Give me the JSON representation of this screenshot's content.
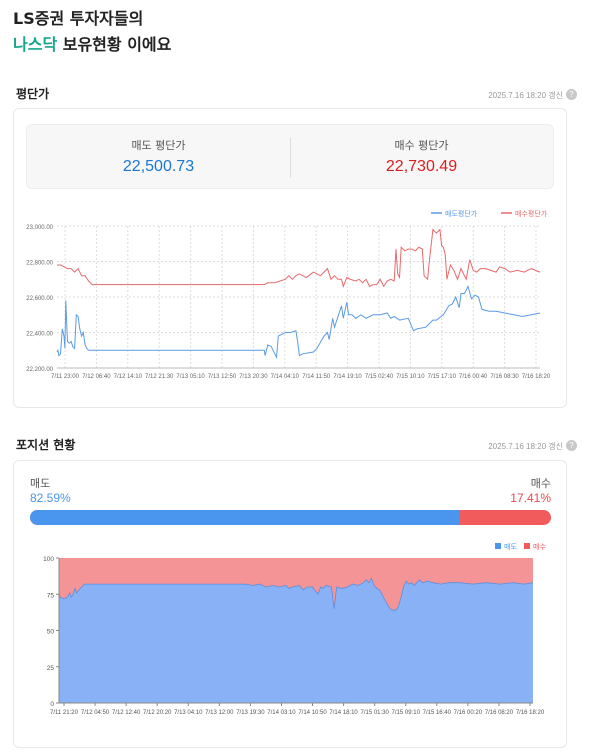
{
  "page": {
    "title_line1": "LS증권 투자자들의",
    "title_hl": "나스닥",
    "title_rest": " 보유현황 이에요"
  },
  "avg_section": {
    "heading": "평단가",
    "timestamp": "2025.7.16 18:20 갱신",
    "help": "?",
    "sell_label": "매도 평단가",
    "sell_value": "22,500.73",
    "buy_label": "매수 평단가",
    "buy_value": "22,730.49"
  },
  "pos_section": {
    "heading": "포지션 현황",
    "timestamp": "2025.7.16 18:20 갱신",
    "help": "?",
    "sell_label": "매도",
    "sell_pct": "82.59%",
    "buy_label": "매수",
    "buy_pct": "17.41%",
    "sell_ratio": 0.8259
  },
  "colors": {
    "sell": "#4a96ee",
    "buy": "#f25b5b",
    "accent": "#19a48c"
  },
  "chart_data": [
    {
      "type": "line",
      "legend_position": "top-right",
      "grid": true,
      "ylim": [
        22200,
        23000
      ],
      "y_ticks": [
        "22,200.00",
        "22,400.00",
        "22,600.00",
        "22,800.00",
        "23,000.00"
      ],
      "x_ticks": [
        "7/11 23:00",
        "7/12 06:40",
        "7/12 14:10",
        "7/12 21:30",
        "7/13 05:10",
        "7/13 12:50",
        "7/13 20:30",
        "7/14 04:10",
        "7/14 11:50",
        "7/14 19:10",
        "7/15 02:40",
        "7/15 10:10",
        "7/15 17:10",
        "7/16 00:40",
        "7/16 08:30",
        "7/16 18:20"
      ],
      "series": [
        {
          "name": "매도평단가",
          "color": "#5b9be6",
          "points": [
            [
              0,
              22290
            ],
            [
              0.5,
              22300
            ],
            [
              1,
              22270
            ],
            [
              2,
              22280
            ],
            [
              3,
              22420
            ],
            [
              4,
              22380
            ],
            [
              4.5,
              22310
            ],
            [
              5,
              22580
            ],
            [
              5.5,
              22450
            ],
            [
              6,
              22350
            ],
            [
              7,
              22340
            ],
            [
              8,
              22350
            ],
            [
              9,
              22320
            ],
            [
              10,
              22310
            ],
            [
              11,
              22500
            ],
            [
              12,
              22490
            ],
            [
              13,
              22420
            ],
            [
              14,
              22380
            ],
            [
              15,
              22400
            ],
            [
              16,
              22330
            ],
            [
              17,
              22310
            ],
            [
              18,
              22300
            ],
            [
              50,
              22300
            ],
            [
              98,
              22300
            ],
            [
              110,
              22300
            ],
            [
              118,
              22300
            ],
            [
              118.5,
              22270
            ],
            [
              120,
              22330
            ],
            [
              122,
              22320
            ],
            [
              125,
              22260
            ],
            [
              126,
              22380
            ],
            [
              130,
              22400
            ],
            [
              133,
              22400
            ],
            [
              136,
              22410
            ],
            [
              137,
              22350
            ],
            [
              138,
              22270
            ],
            [
              140,
              22280
            ],
            [
              146,
              22290
            ],
            [
              148,
              22310
            ],
            [
              152,
              22380
            ],
            [
              154,
              22400
            ],
            [
              155,
              22360
            ],
            [
              157,
              22480
            ],
            [
              158,
              22430
            ],
            [
              160,
              22490
            ],
            [
              162,
              22550
            ],
            [
              163,
              22480
            ],
            [
              165,
              22570
            ],
            [
              166,
              22500
            ],
            [
              168,
              22500
            ],
            [
              170,
              22480
            ],
            [
              173,
              22500
            ],
            [
              176,
              22480
            ],
            [
              180,
              22500
            ],
            [
              184,
              22500
            ],
            [
              188,
              22510
            ],
            [
              190,
              22480
            ],
            [
              192,
              22490
            ],
            [
              195,
              22470
            ],
            [
              200,
              22480
            ],
            [
              203,
              22410
            ],
            [
              205,
              22420
            ],
            [
              210,
              22430
            ],
            [
              212,
              22450
            ],
            [
              214,
              22470
            ],
            [
              216,
              22470
            ],
            [
              220,
              22500
            ],
            [
              223,
              22550
            ],
            [
              225,
              22560
            ],
            [
              227,
              22600
            ],
            [
              229,
              22540
            ],
            [
              230,
              22620
            ],
            [
              232,
              22620
            ],
            [
              234,
              22660
            ],
            [
              236,
              22590
            ],
            [
              238,
              22610
            ],
            [
              240,
              22600
            ],
            [
              242,
              22530
            ],
            [
              246,
              22520
            ],
            [
              250,
              22520
            ],
            [
              255,
              22510
            ],
            [
              260,
              22500
            ],
            [
              265,
              22490
            ],
            [
              270,
              22500
            ],
            [
              275,
              22510
            ]
          ]
        },
        {
          "name": "매수평단가",
          "color": "#e8696b",
          "points": [
            [
              0,
              22780
            ],
            [
              2,
              22780
            ],
            [
              4,
              22770
            ],
            [
              6,
              22760
            ],
            [
              8,
              22760
            ],
            [
              10,
              22740
            ],
            [
              12,
              22760
            ],
            [
              14,
              22720
            ],
            [
              16,
              22720
            ],
            [
              18,
              22690
            ],
            [
              19,
              22680
            ],
            [
              20,
              22670
            ],
            [
              50,
              22670
            ],
            [
              98,
              22670
            ],
            [
              110,
              22670
            ],
            [
              118,
              22670
            ],
            [
              120,
              22680
            ],
            [
              124,
              22680
            ],
            [
              127,
              22690
            ],
            [
              130,
              22700
            ],
            [
              132,
              22720
            ],
            [
              134,
              22700
            ],
            [
              136,
              22720
            ],
            [
              138,
              22730
            ],
            [
              140,
              22720
            ],
            [
              142,
              22710
            ],
            [
              146,
              22740
            ],
            [
              150,
              22720
            ],
            [
              152,
              22740
            ],
            [
              154,
              22760
            ],
            [
              156,
              22700
            ],
            [
              158,
              22720
            ],
            [
              160,
              22700
            ],
            [
              162,
              22700
            ],
            [
              163,
              22660
            ],
            [
              165,
              22710
            ],
            [
              167,
              22700
            ],
            [
              170,
              22690
            ],
            [
              172,
              22700
            ],
            [
              174,
              22680
            ],
            [
              176,
              22700
            ],
            [
              178,
              22660
            ],
            [
              180,
              22670
            ],
            [
              182,
              22670
            ],
            [
              184,
              22700
            ],
            [
              186,
              22660
            ],
            [
              188,
              22690
            ],
            [
              190,
              22700
            ],
            [
              192,
              22690
            ],
            [
              193,
              22870
            ],
            [
              194,
              22730
            ],
            [
              195,
              22710
            ],
            [
              196,
              22880
            ],
            [
              198,
              22860
            ],
            [
              200,
              22870
            ],
            [
              202,
              22870
            ],
            [
              204,
              22860
            ],
            [
              206,
              22880
            ],
            [
              208,
              22870
            ],
            [
              209,
              22720
            ],
            [
              211,
              22700
            ],
            [
              212,
              22800
            ],
            [
              214,
              22980
            ],
            [
              216,
              22960
            ],
            [
              218,
              22980
            ],
            [
              219,
              22890
            ],
            [
              220,
              22880
            ],
            [
              221,
              22840
            ],
            [
              222,
              22700
            ],
            [
              224,
              22780
            ],
            [
              226,
              22750
            ],
            [
              228,
              22700
            ],
            [
              230,
              22760
            ],
            [
              233,
              22700
            ],
            [
              235,
              22810
            ],
            [
              237,
              22750
            ],
            [
              239,
              22740
            ],
            [
              241,
              22760
            ],
            [
              244,
              22760
            ],
            [
              247,
              22750
            ],
            [
              250,
              22740
            ],
            [
              252,
              22770
            ],
            [
              255,
              22760
            ],
            [
              258,
              22740
            ],
            [
              262,
              22750
            ],
            [
              266,
              22740
            ],
            [
              270,
              22760
            ],
            [
              275,
              22740
            ]
          ]
        }
      ]
    },
    {
      "type": "area",
      "legend_position": "top-right",
      "grid": false,
      "ylim": [
        0,
        100
      ],
      "y_ticks": [
        "0",
        "25",
        "50",
        "75",
        "100"
      ],
      "x_ticks": [
        "7/11 21:20",
        "7/12 04:50",
        "7/12 12:40",
        "7/12 20:20",
        "7/13 04:10",
        "7/13 12:00",
        "7/13 19:30",
        "7/14 03:10",
        "7/14 10:50",
        "7/14 18:10",
        "7/15 01:30",
        "7/15 09:10",
        "7/15 16:40",
        "7/16 00:20",
        "7/16 08:20",
        "7/16 18:20"
      ],
      "series": [
        {
          "name": "매도",
          "color": "#88b2f5"
        },
        {
          "name": "매수",
          "color": "#f49496"
        }
      ],
      "sell_points": [
        [
          0,
          75
        ],
        [
          1,
          73
        ],
        [
          3,
          72
        ],
        [
          5,
          72
        ],
        [
          7,
          74
        ],
        [
          8,
          76
        ],
        [
          9,
          73
        ],
        [
          10,
          74
        ],
        [
          12,
          79
        ],
        [
          13,
          76
        ],
        [
          15,
          78
        ],
        [
          17,
          80
        ],
        [
          19,
          82
        ],
        [
          20,
          82
        ],
        [
          60,
          82
        ],
        [
          100,
          82
        ],
        [
          140,
          82
        ],
        [
          145,
          81
        ],
        [
          150,
          82
        ],
        [
          155,
          80
        ],
        [
          160,
          81
        ],
        [
          165,
          80
        ],
        [
          170,
          81
        ],
        [
          172,
          79
        ],
        [
          175,
          80
        ],
        [
          180,
          81
        ],
        [
          183,
          78
        ],
        [
          186,
          80
        ],
        [
          190,
          80
        ],
        [
          192,
          77
        ],
        [
          194,
          75
        ],
        [
          196,
          80
        ],
        [
          198,
          79
        ],
        [
          200,
          81
        ],
        [
          204,
          80
        ],
        [
          206,
          65
        ],
        [
          208,
          80
        ],
        [
          212,
          79
        ],
        [
          216,
          80
        ],
        [
          220,
          82
        ],
        [
          224,
          81
        ],
        [
          228,
          83
        ],
        [
          230,
          85
        ],
        [
          232,
          83
        ],
        [
          234,
          86
        ],
        [
          236,
          81
        ],
        [
          238,
          79
        ],
        [
          240,
          78
        ],
        [
          242,
          75
        ],
        [
          244,
          71
        ],
        [
          246,
          68
        ],
        [
          248,
          65
        ],
        [
          250,
          64
        ],
        [
          252,
          64
        ],
        [
          254,
          66
        ],
        [
          256,
          72
        ],
        [
          258,
          80
        ],
        [
          260,
          84
        ],
        [
          262,
          82
        ],
        [
          264,
          83
        ],
        [
          266,
          81
        ],
        [
          268,
          83
        ],
        [
          270,
          85
        ],
        [
          272,
          83
        ],
        [
          276,
          84
        ],
        [
          280,
          83
        ],
        [
          286,
          82
        ],
        [
          292,
          83
        ],
        [
          300,
          83
        ],
        [
          310,
          82
        ],
        [
          320,
          83
        ],
        [
          330,
          82
        ],
        [
          340,
          83
        ],
        [
          348,
          82
        ],
        [
          355,
          83
        ]
      ]
    }
  ]
}
